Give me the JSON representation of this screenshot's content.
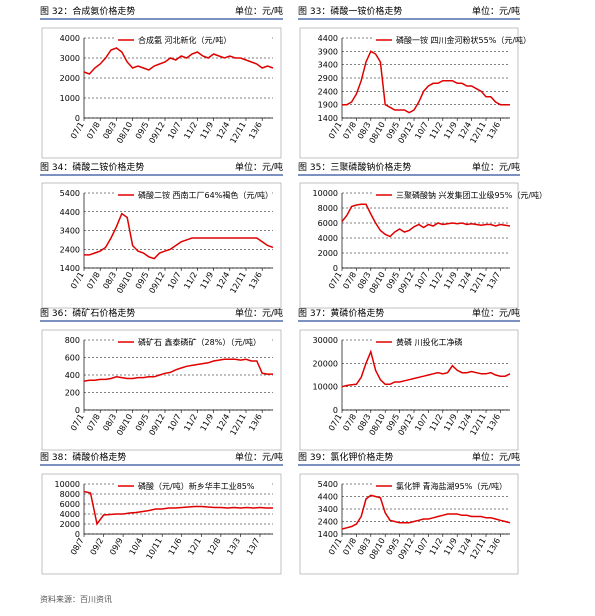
{
  "footer": "资料来源：百川资讯",
  "chart_data": [
    {
      "type": "line",
      "title": "图 32：合成氨价格走势",
      "unit": "单位：元/吨",
      "categories": [
        "07/1",
        null,
        null,
        "07/8",
        null,
        null,
        "08/3",
        null,
        null,
        "08/10",
        null,
        null,
        "09/5",
        null,
        null,
        "09/12",
        null,
        null,
        "10/7",
        null,
        null,
        "11/2",
        null,
        null,
        "11/9",
        null,
        null,
        "12/4",
        null,
        null,
        "12/11",
        null,
        null,
        "13/6",
        null,
        null
      ],
      "series": [
        {
          "name": "合成氨 河北新化（元/吨）",
          "color": "#e00000",
          "values": [
            2300,
            2200,
            2500,
            2700,
            3000,
            3400,
            3500,
            3300,
            2800,
            2500,
            2600,
            2500,
            2400,
            2600,
            2700,
            2800,
            3000,
            2900,
            3100,
            3000,
            3200,
            3300,
            3100,
            3000,
            3200,
            3100,
            3000,
            3100,
            3000,
            3000,
            2900,
            2800,
            2700,
            2500,
            2600,
            2500
          ]
        }
      ],
      "ylim": [
        0,
        4000
      ],
      "yticks": [
        0,
        1000,
        2000,
        3000,
        4000
      ],
      "grid": true
    },
    {
      "type": "line",
      "title": "图 33：磷酸一铵价格走势",
      "unit": "单位：元/吨",
      "categories": [
        "07/1",
        null,
        null,
        "07/8",
        null,
        null,
        "08/3",
        null,
        null,
        "08/10",
        null,
        null,
        "09/5",
        null,
        null,
        "09/12",
        null,
        null,
        "10/7",
        null,
        null,
        "11/2",
        null,
        null,
        "11/9",
        null,
        null,
        "12/4",
        null,
        null,
        "12/11",
        null,
        null,
        "13/6",
        null,
        null
      ],
      "series": [
        {
          "name": "磷酸一铵 四川金河粉状55%（元/吨）",
          "color": "#e00000",
          "values": [
            1900,
            1900,
            2000,
            2300,
            2800,
            3500,
            3900,
            3800,
            3500,
            1900,
            1800,
            1700,
            1700,
            1700,
            1600,
            1700,
            2000,
            2400,
            2600,
            2700,
            2700,
            2800,
            2800,
            2800,
            2700,
            2700,
            2600,
            2600,
            2500,
            2400,
            2200,
            2200,
            2000,
            1900,
            1900,
            1900
          ]
        }
      ],
      "ylim": [
        1400,
        4400
      ],
      "yticks": [
        1400,
        1900,
        2400,
        2900,
        3400,
        3900,
        4400
      ],
      "grid": true
    },
    {
      "type": "line",
      "title": "图 34：磷酸二铵价格走势",
      "unit": "单位：元/吨",
      "categories": [
        "07/1",
        null,
        null,
        "07/8",
        null,
        null,
        "08/3",
        null,
        null,
        "08/10",
        null,
        null,
        "09/5",
        null,
        null,
        "09/12",
        null,
        null,
        "10/7",
        null,
        null,
        "11/2",
        null,
        null,
        "11/9",
        null,
        null,
        "12/4",
        null,
        null,
        "12/11",
        null,
        null,
        "13/6",
        null,
        null
      ],
      "series": [
        {
          "name": "磷酸二铵 西南工厂64%褐色（元/吨）",
          "color": "#e00000",
          "values": [
            2100,
            2100,
            2200,
            2300,
            2500,
            3000,
            3600,
            4300,
            4100,
            2600,
            2300,
            2200,
            2000,
            1900,
            2200,
            2300,
            2400,
            2600,
            2800,
            2900,
            3000,
            3000,
            3000,
            3000,
            3000,
            3000,
            3000,
            3000,
            3000,
            3000,
            3000,
            3000,
            3000,
            2800,
            2600,
            2500
          ]
        }
      ],
      "ylim": [
        1400,
        5400
      ],
      "yticks": [
        1400,
        2400,
        3400,
        4400,
        5400
      ],
      "grid": true
    },
    {
      "type": "line",
      "title": "图 35：三聚磷酸钠价格走势",
      "unit": "单位：元/吨",
      "categories": [
        "07/1",
        null,
        null,
        "07/8",
        null,
        null,
        "08/3",
        null,
        null,
        "08/10",
        null,
        null,
        "09/5",
        null,
        null,
        "09/12",
        null,
        null,
        "10/7",
        null,
        null,
        "11/2",
        null,
        null,
        "11/9",
        null,
        null,
        "12/4",
        null,
        null,
        "12/11",
        null,
        null,
        "13/7",
        null,
        null
      ],
      "series": [
        {
          "name": "三聚磷酸钠 兴发集团工业级95%（元/吨）",
          "color": "#e00000",
          "values": [
            6200,
            7000,
            8200,
            8400,
            8500,
            8500,
            7200,
            6000,
            5000,
            4500,
            4200,
            4800,
            5200,
            4800,
            5000,
            5500,
            5800,
            5400,
            5800,
            5600,
            6000,
            5800,
            5900,
            6000,
            5900,
            6000,
            5800,
            5900,
            5800,
            5700,
            5800,
            5800,
            5600,
            5800,
            5700,
            5600
          ]
        }
      ],
      "ylim": [
        0,
        10000
      ],
      "yticks": [
        0,
        2000,
        4000,
        6000,
        8000,
        10000
      ],
      "grid": true
    },
    {
      "type": "line",
      "title": "图 36：磷矿石价格走势",
      "unit": "单位：元/吨",
      "categories": [
        "07/1",
        null,
        null,
        "07/8",
        null,
        null,
        "08/3",
        null,
        null,
        "08/10",
        null,
        null,
        "09/5",
        null,
        null,
        "09/12",
        null,
        null,
        "10/7",
        null,
        null,
        "11/2",
        null,
        null,
        "11/9",
        null,
        null,
        "12/4",
        null,
        null,
        "12/11",
        null,
        null,
        "13/6",
        null,
        null
      ],
      "series": [
        {
          "name": "磷矿石 鑫泰磷矿（28%）（元/吨）",
          "color": "#e00000",
          "values": [
            330,
            340,
            340,
            350,
            350,
            360,
            380,
            370,
            360,
            360,
            370,
            370,
            380,
            380,
            400,
            420,
            430,
            460,
            480,
            500,
            510,
            520,
            530,
            540,
            560,
            570,
            580,
            580,
            580,
            570,
            580,
            560,
            560,
            420,
            410,
            410
          ]
        }
      ],
      "ylim": [
        0,
        800
      ],
      "yticks": [
        0,
        200,
        400,
        600,
        800
      ],
      "grid": true
    },
    {
      "type": "line",
      "title": "图 37：黄磷价格走势",
      "unit": "单位：元/吨",
      "categories": [
        "07/1",
        null,
        null,
        "07/8",
        null,
        null,
        "08/3",
        null,
        null,
        "08/10",
        null,
        null,
        "09/5",
        null,
        null,
        "09/12",
        null,
        null,
        "10/7",
        null,
        null,
        "11/2",
        null,
        null,
        "11/9",
        null,
        null,
        "12/4",
        null,
        null,
        "12/11",
        null,
        null,
        "13/6",
        null,
        null
      ],
      "series": [
        {
          "name": "黄磷 川投化工净磷",
          "color": "#e00000",
          "values": [
            10000,
            10500,
            10800,
            11000,
            14000,
            20000,
            25000,
            17000,
            13000,
            11000,
            11000,
            12000,
            12000,
            12500,
            13000,
            13500,
            14000,
            14500,
            15000,
            15500,
            16000,
            15500,
            16000,
            19000,
            17000,
            16000,
            16000,
            16500,
            16000,
            15500,
            15500,
            16000,
            15000,
            14500,
            14500,
            15500
          ]
        }
      ],
      "ylim": [
        0,
        30000
      ],
      "yticks": [
        0,
        10000,
        20000,
        30000
      ],
      "grid": true
    },
    {
      "type": "line",
      "title": "图 38：磷酸价格走势",
      "unit": "单位：元/吨",
      "categories": [
        "08/7",
        null,
        null,
        "09/2",
        null,
        null,
        "09/9",
        null,
        null,
        "10/4",
        null,
        null,
        "10/11",
        null,
        null,
        "11/6",
        null,
        null,
        "12/1",
        null,
        null,
        "12/8",
        null,
        null,
        "13/3",
        null,
        null,
        "13/7",
        null,
        null
      ],
      "series": [
        {
          "name": "磷酸（元/吨）新乡华丰工业85%",
          "color": "#e00000",
          "values": [
            8500,
            8200,
            2000,
            3800,
            3900,
            4000,
            4000,
            4200,
            4300,
            4500,
            4700,
            5000,
            5000,
            5200,
            5200,
            5300,
            5400,
            5500,
            5500,
            5400,
            5300,
            5300,
            5200,
            5300,
            5200,
            5300,
            5200,
            5300,
            5200,
            5200
          ]
        }
      ],
      "ylim": [
        0,
        10000
      ],
      "yticks": [
        0,
        2000,
        4000,
        6000,
        8000,
        10000
      ],
      "grid": true
    },
    {
      "type": "line",
      "title": "图 39：氯化钾价格走势",
      "unit": "单位：元/吨",
      "categories": [
        "07/1",
        null,
        null,
        "07/8",
        null,
        null,
        "08/3",
        null,
        null,
        "08/10",
        null,
        null,
        "09/5",
        null,
        null,
        "09/12",
        null,
        null,
        "10/7",
        null,
        null,
        "11/2",
        null,
        null,
        "11/9",
        null,
        null,
        "12/4",
        null,
        null,
        "12/11",
        null,
        null,
        "13/6",
        null,
        null
      ],
      "series": [
        {
          "name": "氯化钾 青海盐湖95%（元/吨）",
          "color": "#e00000",
          "values": [
            1800,
            1900,
            2000,
            2200,
            2800,
            4200,
            4500,
            4400,
            4300,
            3100,
            2500,
            2400,
            2300,
            2300,
            2300,
            2400,
            2500,
            2600,
            2600,
            2700,
            2800,
            2900,
            3000,
            3000,
            3000,
            2900,
            2900,
            2800,
            2800,
            2800,
            2700,
            2700,
            2600,
            2500,
            2400,
            2300
          ]
        }
      ],
      "ylim": [
        1400,
        5400
      ],
      "yticks": [
        1400,
        2400,
        3400,
        4400,
        5400
      ],
      "grid": true
    }
  ]
}
